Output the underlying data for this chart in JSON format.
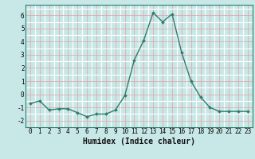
{
  "x": [
    0,
    1,
    2,
    3,
    4,
    5,
    6,
    7,
    8,
    9,
    10,
    11,
    12,
    13,
    14,
    15,
    16,
    17,
    18,
    19,
    20,
    21,
    22,
    23
  ],
  "y": [
    -0.7,
    -0.5,
    -1.2,
    -1.1,
    -1.1,
    -1.4,
    -1.7,
    -1.5,
    -1.5,
    -1.2,
    -0.1,
    2.6,
    4.1,
    6.2,
    5.5,
    6.1,
    3.2,
    1.0,
    -0.2,
    -1.0,
    -1.3,
    -1.3,
    -1.3,
    -1.3
  ],
  "line_color": "#2e7d6e",
  "marker": "D",
  "marker_size": 2.0,
  "bg_color": "#c8e8e8",
  "xlabel": "Humidex (Indice chaleur)",
  "ylim": [
    -2.5,
    6.8
  ],
  "xlim": [
    -0.5,
    23.5
  ],
  "yticks": [
    -2,
    -1,
    0,
    1,
    2,
    3,
    4,
    5,
    6
  ],
  "xticks": [
    0,
    1,
    2,
    3,
    4,
    5,
    6,
    7,
    8,
    9,
    10,
    11,
    12,
    13,
    14,
    15,
    16,
    17,
    18,
    19,
    20,
    21,
    22,
    23
  ],
  "tick_fontsize": 5.5,
  "xlabel_fontsize": 7,
  "line_width": 1.0,
  "major_grid_color": "#e8a0a0",
  "minor_grid_color": "#ffffff",
  "spine_color": "#2e7d6e"
}
